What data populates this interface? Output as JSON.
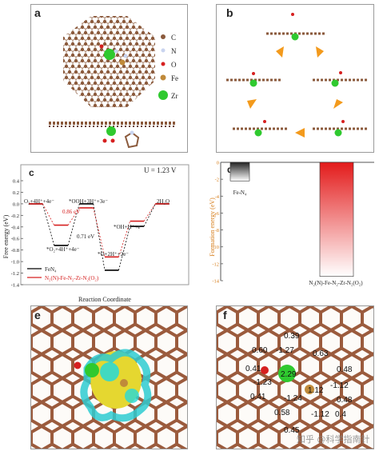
{
  "panel_a": {
    "label": "a",
    "legend": [
      {
        "symbol": "C",
        "color": "#8B5A3C"
      },
      {
        "symbol": "N",
        "color": "#c9d4ef"
      },
      {
        "symbol": "O",
        "color": "#d62020"
      },
      {
        "symbol": "Fe",
        "color": "#c08a3a"
      },
      {
        "symbol": "Zr",
        "color": "#2fc92f"
      }
    ]
  },
  "panel_b": {
    "label": "b"
  },
  "panel_c": {
    "label": "c",
    "potential": "U = 1.23 V",
    "ylabel": "Free energy (eV)",
    "xlabel": "Reaction Coordinate",
    "chart_data": {
      "type": "line",
      "ylim": [
        -1.4,
        0.4
      ],
      "yticks": [
        "0.4",
        "0.2",
        "0.0",
        "-0.2",
        "-0.4",
        "-0.6",
        "-0.8",
        "-1.0",
        "-1.2",
        "-1.4"
      ],
      "series": [
        {
          "name": "FeN4",
          "color": "#000000",
          "values": [
            0.0,
            -0.72,
            0.0,
            -1.15,
            -0.39,
            0.0
          ]
        },
        {
          "name": "N2(N)-Fe-N2-Zr-N2(O2)",
          "color": "#d62020",
          "values": [
            0.0,
            -0.37,
            -0.07,
            -0.92,
            -0.3,
            0.0
          ]
        }
      ],
      "states": [
        "O2+4H+4e",
        "*O2+4H+4e",
        "*OOH+3H+3e",
        "*O+2H+2e",
        "*OH+H+e",
        "2H2O"
      ],
      "annotations": [
        "0.86 eV",
        "0.71 eV"
      ]
    },
    "labels": {
      "s0": "O₂+4H⁺+4e⁻",
      "s1": "*O₂+4H⁺+4e⁻",
      "s2": "*OOH+3H⁺+3e⁻",
      "s3": "*O+2H⁺+2e⁻",
      "s4": "*OH+H⁺+e⁻",
      "s5": "2H₂O",
      "ann1": "0.86 eV",
      "ann2": "0.71 eV",
      "leg1": "FeN₄",
      "leg2": "N₂(N)-Fe-N₂-Zr-N₂(O₂)"
    }
  },
  "panel_d": {
    "label": "d",
    "ylabel": "Formation energy (eV)",
    "chart_data": {
      "type": "bar",
      "categories": [
        "Fe-N4",
        "N2(N)-Fe-N2-Zr-N2(O2)"
      ],
      "values": [
        -2.2,
        -13.5
      ],
      "ylim": [
        -14,
        0
      ],
      "yticks": [
        "0",
        "-2",
        "-4",
        "-6",
        "-8",
        "-10",
        "-12",
        "-14"
      ]
    },
    "cat1": "Fe-N₄",
    "cat2": "N₂(N)-Fe-N₂-Zr-N₂(O₂)"
  },
  "panel_e": {
    "label": "e"
  },
  "panel_f": {
    "label": "f",
    "charges": [
      "0.39",
      "0.60",
      "-1.27",
      "0.63",
      "0.41",
      "2.29",
      "0.48",
      "-1.23",
      "1.12",
      "-1.12",
      "-1.24",
      "0.41",
      "0.48",
      "0.58",
      "-1.12",
      "0.4",
      "0.45"
    ]
  },
  "watermark": "知乎 @科学指南针"
}
